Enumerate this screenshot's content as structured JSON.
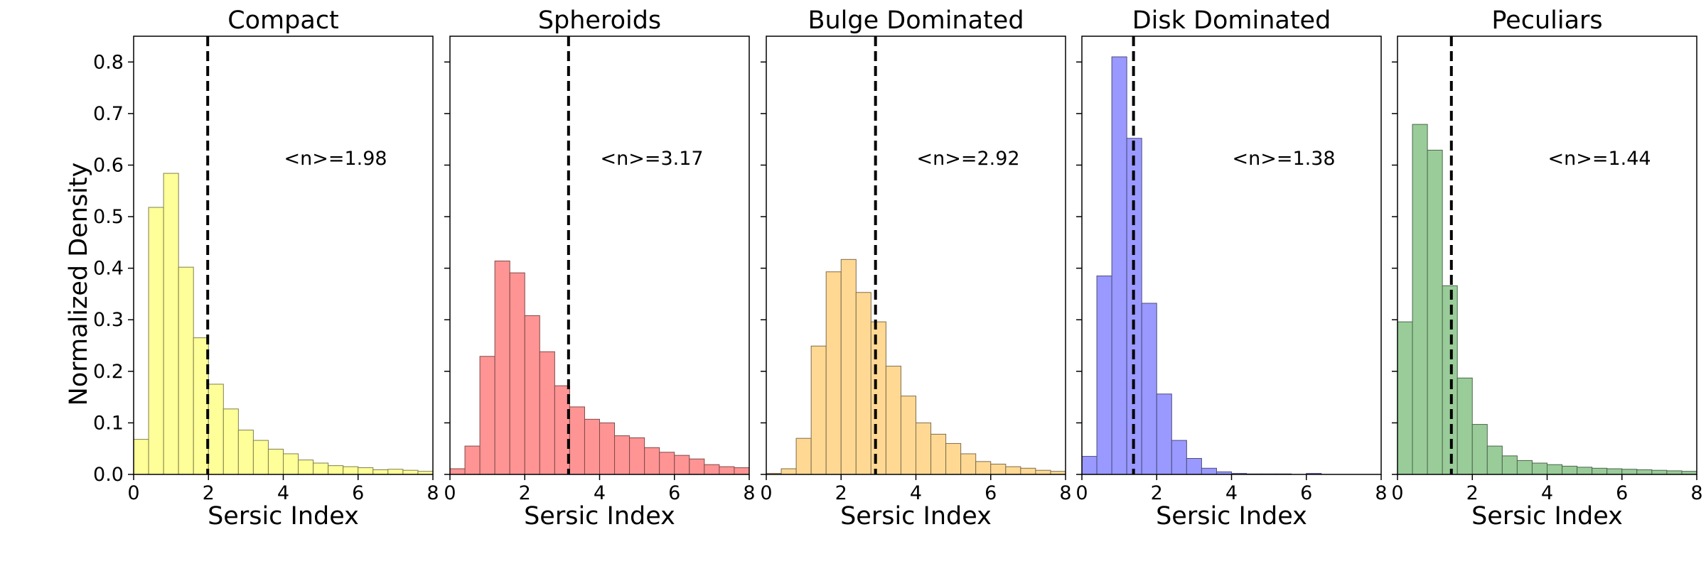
{
  "chart_data": {
    "type": "bar",
    "kind": "histogram",
    "ylabel": "Normalized Density",
    "ylim": [
      0,
      0.85
    ],
    "yticks": [
      0.0,
      0.1,
      0.2,
      0.3,
      0.4,
      0.5,
      0.6,
      0.7,
      0.8
    ],
    "ytick_labels": [
      "0.0",
      "0.1",
      "0.2",
      "0.3",
      "0.4",
      "0.5",
      "0.6",
      "0.7",
      "0.8"
    ],
    "xlim": [
      0,
      8
    ],
    "xticks": [
      0,
      2,
      4,
      6,
      8
    ],
    "xtick_labels": [
      "0",
      "2",
      "4",
      "6",
      "8"
    ],
    "bin_width": 0.4,
    "panels": [
      {
        "title": "Compact",
        "xlabel": "Sersic Index",
        "color": "#ffff99",
        "edge_color": "#7f7f4c",
        "mean": 1.98,
        "annotation": "<n>=1.98",
        "bin_starts": [
          0.0,
          0.4,
          0.8,
          1.2,
          1.6,
          2.0,
          2.4,
          2.8,
          3.2,
          3.6,
          4.0,
          4.4,
          4.8,
          5.2,
          5.6,
          6.0,
          6.4,
          6.8,
          7.2,
          7.6
        ],
        "values": [
          0.068,
          0.518,
          0.584,
          0.402,
          0.265,
          0.175,
          0.127,
          0.086,
          0.066,
          0.049,
          0.04,
          0.028,
          0.022,
          0.017,
          0.015,
          0.013,
          0.009,
          0.01,
          0.008,
          0.006
        ]
      },
      {
        "title": "Spheroids",
        "xlabel": "Sersic Index",
        "color": "#ff9494",
        "edge_color": "#7f4a4a",
        "mean": 3.17,
        "annotation": "<n>=3.17",
        "bin_starts": [
          0.0,
          0.4,
          0.8,
          1.2,
          1.6,
          2.0,
          2.4,
          2.8,
          3.2,
          3.6,
          4.0,
          4.4,
          4.8,
          5.2,
          5.6,
          6.0,
          6.4,
          6.8,
          7.2,
          7.6
        ],
        "values": [
          0.011,
          0.055,
          0.229,
          0.414,
          0.391,
          0.308,
          0.238,
          0.172,
          0.131,
          0.107,
          0.1,
          0.075,
          0.071,
          0.052,
          0.043,
          0.037,
          0.03,
          0.019,
          0.015,
          0.013
        ]
      },
      {
        "title": "Bulge Dominated",
        "xlabel": "Sersic Index",
        "color": "#ffd994",
        "edge_color": "#7f6c4a",
        "mean": 2.92,
        "annotation": "<n>=2.92",
        "bin_starts": [
          0.0,
          0.4,
          0.8,
          1.2,
          1.6,
          2.0,
          2.4,
          2.8,
          3.2,
          3.6,
          4.0,
          4.4,
          4.8,
          5.2,
          5.6,
          6.0,
          6.4,
          6.8,
          7.2,
          7.6
        ],
        "values": [
          0.002,
          0.011,
          0.07,
          0.249,
          0.393,
          0.417,
          0.353,
          0.296,
          0.21,
          0.152,
          0.1,
          0.078,
          0.06,
          0.04,
          0.025,
          0.02,
          0.015,
          0.012,
          0.008,
          0.006
        ]
      },
      {
        "title": "Disk Dominated",
        "xlabel": "Sersic Index",
        "color": "#9999ff",
        "edge_color": "#4c4c7f",
        "mean": 1.38,
        "annotation": "<n>=1.38",
        "bin_starts": [
          0.0,
          0.4,
          0.8,
          1.2,
          1.6,
          2.0,
          2.4,
          2.8,
          3.2,
          3.6,
          4.0,
          4.4,
          4.8,
          5.2,
          5.6,
          6.0,
          6.4,
          6.8,
          7.2,
          7.6
        ],
        "values": [
          0.035,
          0.385,
          0.81,
          0.652,
          0.332,
          0.156,
          0.066,
          0.031,
          0.012,
          0.005,
          0.002,
          0.001,
          0.001,
          0.001,
          0.0,
          0.002,
          0.0,
          0.0,
          0.0,
          0.0
        ]
      },
      {
        "title": "Peculiars",
        "xlabel": "Sersic Index",
        "color": "#99cc99",
        "edge_color": "#4c664c",
        "mean": 1.44,
        "annotation": "<n>=1.44",
        "bin_starts": [
          0.0,
          0.4,
          0.8,
          1.2,
          1.6,
          2.0,
          2.4,
          2.8,
          3.2,
          3.6,
          4.0,
          4.4,
          4.8,
          5.2,
          5.6,
          6.0,
          6.4,
          6.8,
          7.2,
          7.6
        ],
        "values": [
          0.296,
          0.679,
          0.629,
          0.366,
          0.187,
          0.097,
          0.055,
          0.036,
          0.027,
          0.022,
          0.019,
          0.016,
          0.014,
          0.012,
          0.011,
          0.01,
          0.009,
          0.008,
          0.007,
          0.006
        ]
      }
    ]
  }
}
